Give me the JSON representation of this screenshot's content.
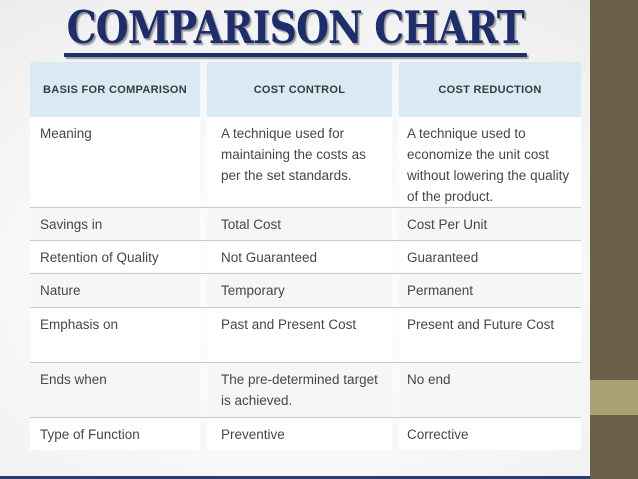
{
  "title": "COMPARISON CHART",
  "table": {
    "headers": [
      "BASIS FOR COMPARISON",
      "COST CONTROL",
      "COST REDUCTION"
    ],
    "rows": [
      {
        "basis": "Meaning",
        "control": "A technique used for maintaining the costs as per the set standards.",
        "reduction": "A technique used to economize the unit cost without lowering the quality of the product."
      },
      {
        "basis": "Savings in",
        "control": "Total Cost",
        "reduction": "Cost Per Unit"
      },
      {
        "basis": "Retention of Quality",
        "control": "Not Guaranteed",
        "reduction": "Guaranteed"
      },
      {
        "basis": "Nature",
        "control": "Temporary",
        "reduction": "Permanent"
      },
      {
        "basis": "Emphasis on",
        "control": "Past and Present Cost",
        "reduction": "Present and Future Cost"
      },
      {
        "basis": "Ends when",
        "control": "The pre-determined target is achieved.",
        "reduction": "No end"
      },
      {
        "basis": "Type of Function",
        "control": "Preventive",
        "reduction": "Corrective"
      }
    ]
  },
  "colors": {
    "title_navy": "#1e2d6b",
    "header_blue": "#d9eaf4",
    "row_alt_gray": "#f5f6f6",
    "separator_gray": "#c9c9c9",
    "sidebar_olive": "#6a6047",
    "sidebar_olive_light": "#a8a176",
    "bottom_bar_navy": "#2d3c6e",
    "body_text": "#474747"
  }
}
